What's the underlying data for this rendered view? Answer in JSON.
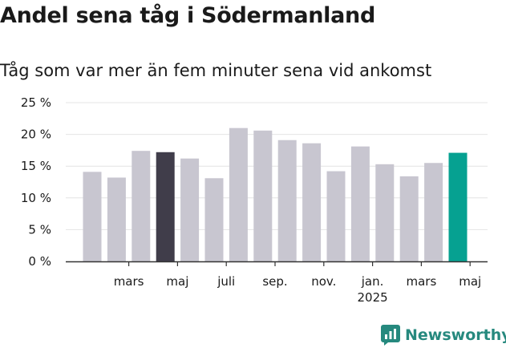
{
  "title": "Andel sena tåg i Södermanland",
  "subtitle": "Tåg som var mer än fem minuter sena vid ankomst",
  "brand": {
    "name": "Newsworthy",
    "icon": "newsworthy-logo-icon"
  },
  "colors": {
    "bar_default": "#c8c6d0",
    "bar_highlight_prev": "#403d4a",
    "bar_highlight_current": "#06a191",
    "grid": "#e4e4e4",
    "axis": "#333333",
    "text": "#1a1a1a",
    "brand": "#26897e"
  },
  "chart_data": {
    "type": "bar",
    "categories": [
      "2024-01",
      "2024-02",
      "2024-03",
      "2024-04",
      "2024-05",
      "2024-06",
      "2024-07",
      "2024-08",
      "2024-09",
      "2024-10",
      "2024-11",
      "2024-12",
      "2025-01",
      "2025-02",
      "2025-03",
      "2025-04",
      "2025-05"
    ],
    "values": [
      14.1,
      13.2,
      17.4,
      17.2,
      16.2,
      13.1,
      21.0,
      20.6,
      19.1,
      18.6,
      14.2,
      18.1,
      15.3,
      13.4,
      15.5,
      17.1,
      null
    ],
    "highlight": {
      "2024-04": "bar_highlight_prev",
      "2025-04": "bar_highlight_current"
    },
    "ylim": [
      0,
      25
    ],
    "yticks": [
      {
        "value": 0,
        "label": "0 %"
      },
      {
        "value": 5,
        "label": "5 %"
      },
      {
        "value": 10,
        "label": "10 %"
      },
      {
        "value": 15,
        "label": "15 %"
      },
      {
        "value": 20,
        "label": "20 %"
      },
      {
        "value": 25,
        "label": "25 %"
      }
    ],
    "xticks": [
      {
        "at": "2024-02",
        "label": "mars"
      },
      {
        "at": "2024-04",
        "label": "maj"
      },
      {
        "at": "2024-06",
        "label": "juli"
      },
      {
        "at": "2024-08",
        "label": "sep."
      },
      {
        "at": "2024-10",
        "label": "nov."
      },
      {
        "at": "2024-12",
        "label": "jan.",
        "sublabel": "2025"
      },
      {
        "at": "2025-02",
        "label": "mars"
      },
      {
        "at": "2025-04",
        "label": "maj"
      }
    ],
    "grid": true,
    "xlabel": "",
    "ylabel": ""
  }
}
